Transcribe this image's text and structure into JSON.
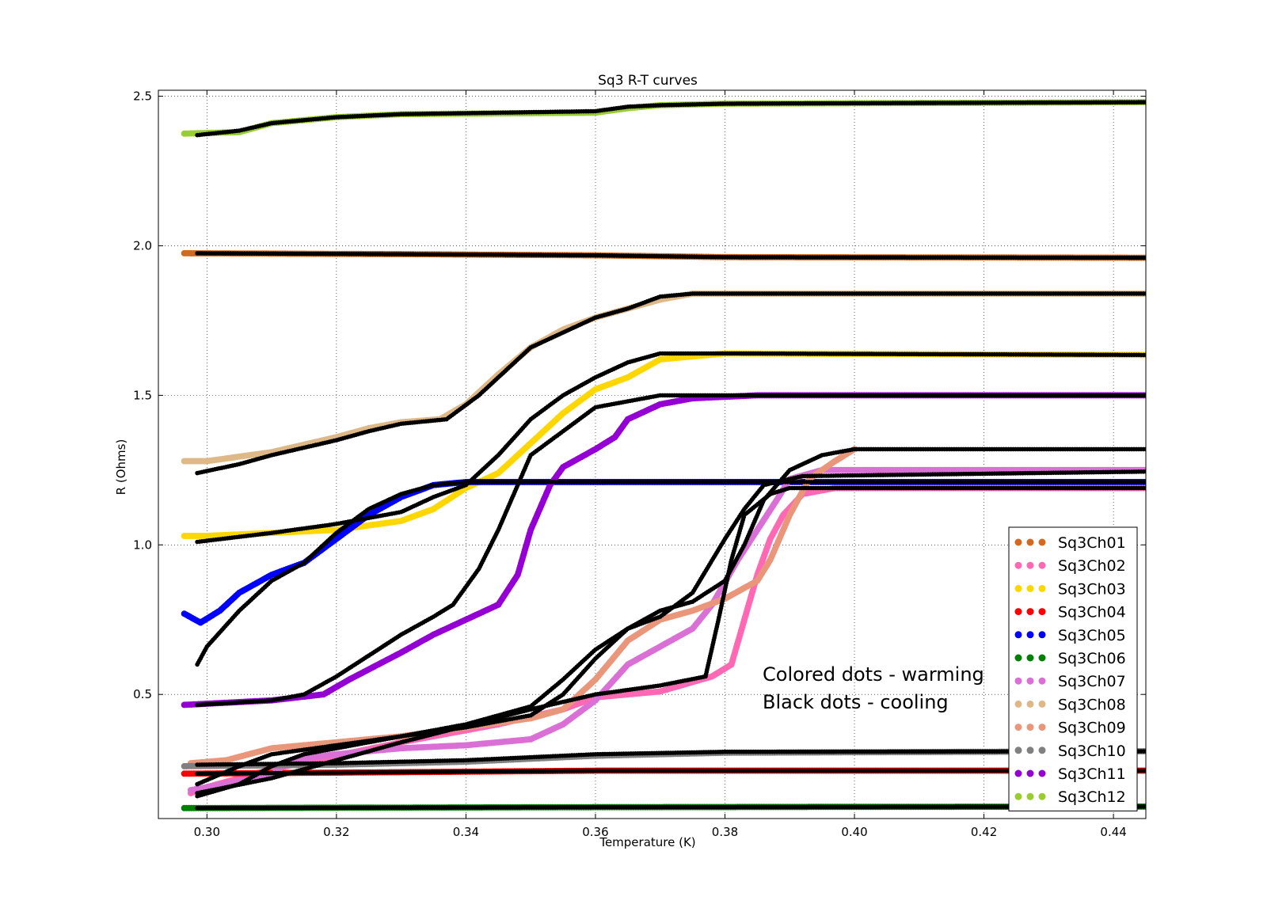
{
  "chart_data": {
    "type": "scatter",
    "title": "Sq3 R-T curves",
    "xlabel": "Temperature (K)",
    "ylabel": "R (Ohms)",
    "xlim": [
      0.2925,
      0.445
    ],
    "ylim": [
      0.085,
      2.52
    ],
    "grid": true,
    "legend_position": "lower-right",
    "x_ticks": [
      0.3,
      0.32,
      0.34,
      0.36,
      0.38,
      0.4,
      0.42,
      0.44
    ],
    "x_tick_labels": [
      "0.30",
      "0.32",
      "0.34",
      "0.36",
      "0.38",
      "0.40",
      "0.42",
      "0.44"
    ],
    "y_ticks": [
      0.5,
      1.0,
      1.5,
      2.0,
      2.5
    ],
    "y_tick_labels": [
      "0.5",
      "1.0",
      "1.5",
      "2.0",
      "2.5"
    ],
    "annotations": [
      "Colored dots - warming",
      "Black dots - cooling"
    ],
    "cooling_color": "#000000",
    "series": [
      {
        "name": "Sq3Ch01",
        "color": "#d2691e",
        "warming": [
          [
            0.2965,
            1.975
          ],
          [
            0.33,
            1.972
          ],
          [
            0.36,
            1.968
          ],
          [
            0.38,
            1.962
          ],
          [
            0.445,
            1.96
          ]
        ],
        "cooling": [
          [
            0.2985,
            1.975
          ],
          [
            0.33,
            1.972
          ],
          [
            0.36,
            1.968
          ],
          [
            0.38,
            1.962
          ],
          [
            0.445,
            1.96
          ]
        ]
      },
      {
        "name": "Sq3Ch02",
        "color": "#ff69b4",
        "warming": [
          [
            0.2975,
            0.17
          ],
          [
            0.3,
            0.19
          ],
          [
            0.31,
            0.25
          ],
          [
            0.33,
            0.34
          ],
          [
            0.345,
            0.4
          ],
          [
            0.355,
            0.45
          ],
          [
            0.36,
            0.49
          ],
          [
            0.37,
            0.51
          ],
          [
            0.378,
            0.56
          ],
          [
            0.381,
            0.6
          ],
          [
            0.383,
            0.75
          ],
          [
            0.385,
            0.9
          ],
          [
            0.387,
            1.02
          ],
          [
            0.389,
            1.1
          ],
          [
            0.392,
            1.17
          ],
          [
            0.397,
            1.19
          ],
          [
            0.445,
            1.19
          ]
        ],
        "cooling": [
          [
            0.2985,
            0.17
          ],
          [
            0.31,
            0.22
          ],
          [
            0.33,
            0.34
          ],
          [
            0.35,
            0.45
          ],
          [
            0.36,
            0.5
          ],
          [
            0.37,
            0.53
          ],
          [
            0.377,
            0.56
          ],
          [
            0.379,
            0.75
          ],
          [
            0.381,
            0.95
          ],
          [
            0.383,
            1.1
          ],
          [
            0.387,
            1.17
          ],
          [
            0.39,
            1.19
          ],
          [
            0.445,
            1.19
          ]
        ]
      },
      {
        "name": "Sq3Ch03",
        "color": "#ffd700",
        "warming": [
          [
            0.2965,
            1.03
          ],
          [
            0.3,
            1.03
          ],
          [
            0.32,
            1.05
          ],
          [
            0.33,
            1.08
          ],
          [
            0.335,
            1.12
          ],
          [
            0.34,
            1.19
          ],
          [
            0.345,
            1.24
          ],
          [
            0.35,
            1.34
          ],
          [
            0.355,
            1.44
          ],
          [
            0.36,
            1.52
          ],
          [
            0.365,
            1.56
          ],
          [
            0.37,
            1.62
          ],
          [
            0.38,
            1.64
          ],
          [
            0.445,
            1.635
          ]
        ],
        "cooling": [
          [
            0.2985,
            1.01
          ],
          [
            0.31,
            1.04
          ],
          [
            0.32,
            1.07
          ],
          [
            0.33,
            1.11
          ],
          [
            0.335,
            1.16
          ],
          [
            0.34,
            1.2
          ],
          [
            0.345,
            1.3
          ],
          [
            0.35,
            1.42
          ],
          [
            0.355,
            1.5
          ],
          [
            0.36,
            1.56
          ],
          [
            0.365,
            1.61
          ],
          [
            0.37,
            1.64
          ],
          [
            0.38,
            1.64
          ],
          [
            0.445,
            1.635
          ]
        ]
      },
      {
        "name": "Sq3Ch04",
        "color": "#ff0000",
        "warming": [
          [
            0.2965,
            0.235
          ],
          [
            0.33,
            0.24
          ],
          [
            0.36,
            0.245
          ],
          [
            0.4,
            0.245
          ],
          [
            0.445,
            0.245
          ]
        ],
        "cooling": [
          [
            0.2985,
            0.235
          ],
          [
            0.33,
            0.24
          ],
          [
            0.36,
            0.245
          ],
          [
            0.4,
            0.245
          ],
          [
            0.445,
            0.245
          ]
        ]
      },
      {
        "name": "Sq3Ch05",
        "color": "#0000ff",
        "warming": [
          [
            0.2965,
            0.77
          ],
          [
            0.299,
            0.74
          ],
          [
            0.302,
            0.78
          ],
          [
            0.305,
            0.84
          ],
          [
            0.31,
            0.9
          ],
          [
            0.315,
            0.94
          ],
          [
            0.32,
            1.02
          ],
          [
            0.325,
            1.1
          ],
          [
            0.33,
            1.16
          ],
          [
            0.335,
            1.2
          ],
          [
            0.34,
            1.21
          ],
          [
            0.36,
            1.21
          ],
          [
            0.445,
            1.21
          ]
        ],
        "cooling": [
          [
            0.2985,
            0.6
          ],
          [
            0.3,
            0.66
          ],
          [
            0.305,
            0.78
          ],
          [
            0.31,
            0.88
          ],
          [
            0.315,
            0.94
          ],
          [
            0.32,
            1.04
          ],
          [
            0.325,
            1.12
          ],
          [
            0.33,
            1.17
          ],
          [
            0.335,
            1.2
          ],
          [
            0.34,
            1.21
          ],
          [
            0.36,
            1.21
          ],
          [
            0.445,
            1.21
          ]
        ]
      },
      {
        "name": "Sq3Ch06",
        "color": "#008000",
        "warming": [
          [
            0.2965,
            0.12
          ],
          [
            0.36,
            0.123
          ],
          [
            0.445,
            0.125
          ]
        ],
        "cooling": [
          [
            0.2985,
            0.12
          ],
          [
            0.36,
            0.123
          ],
          [
            0.445,
            0.125
          ]
        ]
      },
      {
        "name": "Sq3Ch07",
        "color": "#da70d6",
        "warming": [
          [
            0.2975,
            0.18
          ],
          [
            0.305,
            0.21
          ],
          [
            0.31,
            0.23
          ],
          [
            0.313,
            0.28
          ],
          [
            0.32,
            0.3
          ],
          [
            0.33,
            0.32
          ],
          [
            0.34,
            0.33
          ],
          [
            0.35,
            0.35
          ],
          [
            0.355,
            0.4
          ],
          [
            0.36,
            0.48
          ],
          [
            0.365,
            0.6
          ],
          [
            0.37,
            0.66
          ],
          [
            0.375,
            0.72
          ],
          [
            0.378,
            0.8
          ],
          [
            0.382,
            0.95
          ],
          [
            0.385,
            1.05
          ],
          [
            0.388,
            1.15
          ],
          [
            0.39,
            1.22
          ],
          [
            0.395,
            1.25
          ],
          [
            0.445,
            1.25
          ]
        ],
        "cooling": [
          [
            0.2985,
            0.16
          ],
          [
            0.305,
            0.2
          ],
          [
            0.31,
            0.26
          ],
          [
            0.315,
            0.3
          ],
          [
            0.325,
            0.34
          ],
          [
            0.34,
            0.4
          ],
          [
            0.35,
            0.46
          ],
          [
            0.355,
            0.55
          ],
          [
            0.36,
            0.65
          ],
          [
            0.365,
            0.72
          ],
          [
            0.37,
            0.76
          ],
          [
            0.375,
            0.84
          ],
          [
            0.38,
            1.02
          ],
          [
            0.383,
            1.12
          ],
          [
            0.386,
            1.2
          ],
          [
            0.392,
            1.23
          ],
          [
            0.445,
            1.245
          ]
        ]
      },
      {
        "name": "Sq3Ch08",
        "color": "#deb887",
        "warming": [
          [
            0.2965,
            1.28
          ],
          [
            0.3,
            1.28
          ],
          [
            0.31,
            1.31
          ],
          [
            0.32,
            1.36
          ],
          [
            0.325,
            1.39
          ],
          [
            0.33,
            1.41
          ],
          [
            0.336,
            1.42
          ],
          [
            0.34,
            1.47
          ],
          [
            0.345,
            1.57
          ],
          [
            0.35,
            1.66
          ],
          [
            0.355,
            1.72
          ],
          [
            0.36,
            1.76
          ],
          [
            0.365,
            1.79
          ],
          [
            0.37,
            1.82
          ],
          [
            0.375,
            1.84
          ],
          [
            0.385,
            1.84
          ],
          [
            0.445,
            1.84
          ]
        ],
        "cooling": [
          [
            0.2985,
            1.24
          ],
          [
            0.305,
            1.27
          ],
          [
            0.31,
            1.3
          ],
          [
            0.32,
            1.35
          ],
          [
            0.325,
            1.38
          ],
          [
            0.33,
            1.405
          ],
          [
            0.337,
            1.42
          ],
          [
            0.342,
            1.5
          ],
          [
            0.346,
            1.58
          ],
          [
            0.35,
            1.66
          ],
          [
            0.355,
            1.71
          ],
          [
            0.36,
            1.76
          ],
          [
            0.365,
            1.79
          ],
          [
            0.37,
            1.83
          ],
          [
            0.375,
            1.84
          ],
          [
            0.385,
            1.84
          ],
          [
            0.445,
            1.84
          ]
        ]
      },
      {
        "name": "Sq3Ch09",
        "color": "#e9967a",
        "warming": [
          [
            0.2975,
            0.27
          ],
          [
            0.303,
            0.28
          ],
          [
            0.31,
            0.32
          ],
          [
            0.32,
            0.34
          ],
          [
            0.33,
            0.36
          ],
          [
            0.34,
            0.39
          ],
          [
            0.35,
            0.42
          ],
          [
            0.355,
            0.45
          ],
          [
            0.36,
            0.55
          ],
          [
            0.365,
            0.68
          ],
          [
            0.37,
            0.75
          ],
          [
            0.375,
            0.78
          ],
          [
            0.38,
            0.82
          ],
          [
            0.385,
            0.88
          ],
          [
            0.387,
            0.95
          ],
          [
            0.39,
            1.1
          ],
          [
            0.393,
            1.22
          ],
          [
            0.397,
            1.28
          ],
          [
            0.4,
            1.32
          ]
        ],
        "cooling": [
          [
            0.2985,
            0.2
          ],
          [
            0.305,
            0.26
          ],
          [
            0.31,
            0.3
          ],
          [
            0.32,
            0.33
          ],
          [
            0.33,
            0.36
          ],
          [
            0.34,
            0.39
          ],
          [
            0.35,
            0.43
          ],
          [
            0.355,
            0.5
          ],
          [
            0.36,
            0.62
          ],
          [
            0.365,
            0.72
          ],
          [
            0.37,
            0.78
          ],
          [
            0.375,
            0.81
          ],
          [
            0.38,
            0.88
          ],
          [
            0.383,
            1.0
          ],
          [
            0.386,
            1.15
          ],
          [
            0.39,
            1.25
          ],
          [
            0.395,
            1.3
          ],
          [
            0.4,
            1.32
          ],
          [
            0.445,
            1.32
          ]
        ]
      },
      {
        "name": "Sq3Ch10",
        "color": "#808080",
        "warming": [
          [
            0.2965,
            0.26
          ],
          [
            0.32,
            0.265
          ],
          [
            0.34,
            0.275
          ],
          [
            0.36,
            0.295
          ],
          [
            0.38,
            0.305
          ],
          [
            0.445,
            0.31
          ]
        ],
        "cooling": [
          [
            0.2985,
            0.265
          ],
          [
            0.32,
            0.27
          ],
          [
            0.34,
            0.28
          ],
          [
            0.36,
            0.3
          ],
          [
            0.38,
            0.308
          ],
          [
            0.445,
            0.31
          ]
        ]
      },
      {
        "name": "Sq3Ch11",
        "color": "#9400d3",
        "warming": [
          [
            0.2965,
            0.465
          ],
          [
            0.31,
            0.48
          ],
          [
            0.318,
            0.5
          ],
          [
            0.322,
            0.55
          ],
          [
            0.33,
            0.64
          ],
          [
            0.335,
            0.7
          ],
          [
            0.34,
            0.75
          ],
          [
            0.345,
            0.8
          ],
          [
            0.348,
            0.9
          ],
          [
            0.35,
            1.05
          ],
          [
            0.353,
            1.2
          ],
          [
            0.355,
            1.26
          ],
          [
            0.36,
            1.32
          ],
          [
            0.363,
            1.36
          ],
          [
            0.365,
            1.42
          ],
          [
            0.37,
            1.47
          ],
          [
            0.375,
            1.49
          ],
          [
            0.385,
            1.5
          ],
          [
            0.445,
            1.5
          ]
        ],
        "cooling": [
          [
            0.2985,
            0.465
          ],
          [
            0.31,
            0.48
          ],
          [
            0.315,
            0.5
          ],
          [
            0.32,
            0.56
          ],
          [
            0.325,
            0.63
          ],
          [
            0.33,
            0.7
          ],
          [
            0.335,
            0.76
          ],
          [
            0.338,
            0.8
          ],
          [
            0.342,
            0.92
          ],
          [
            0.345,
            1.05
          ],
          [
            0.348,
            1.2
          ],
          [
            0.35,
            1.3
          ],
          [
            0.355,
            1.38
          ],
          [
            0.36,
            1.46
          ],
          [
            0.365,
            1.48
          ],
          [
            0.37,
            1.5
          ],
          [
            0.385,
            1.5
          ],
          [
            0.445,
            1.5
          ]
        ]
      },
      {
        "name": "Sq3Ch12",
        "color": "#9acd32",
        "warming": [
          [
            0.2965,
            2.375
          ],
          [
            0.305,
            2.38
          ],
          [
            0.31,
            2.41
          ],
          [
            0.32,
            2.43
          ],
          [
            0.33,
            2.44
          ],
          [
            0.36,
            2.445
          ],
          [
            0.365,
            2.46
          ],
          [
            0.37,
            2.47
          ],
          [
            0.38,
            2.475
          ],
          [
            0.445,
            2.48
          ]
        ],
        "cooling": [
          [
            0.2985,
            2.37
          ],
          [
            0.305,
            2.385
          ],
          [
            0.31,
            2.41
          ],
          [
            0.32,
            2.43
          ],
          [
            0.33,
            2.44
          ],
          [
            0.36,
            2.45
          ],
          [
            0.365,
            2.465
          ],
          [
            0.37,
            2.47
          ],
          [
            0.38,
            2.475
          ],
          [
            0.445,
            2.48
          ]
        ]
      }
    ]
  }
}
